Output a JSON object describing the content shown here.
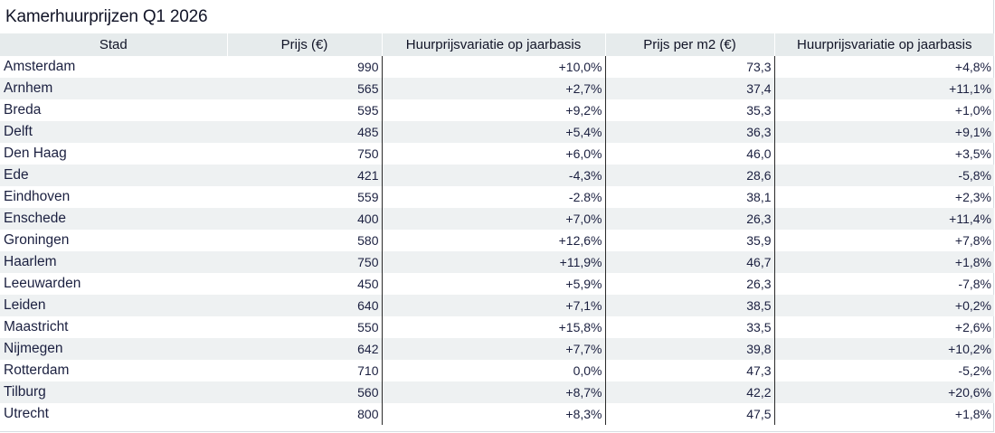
{
  "title": "Kamerhuurprijzen Q1 2026",
  "chart_data": {
    "type": "table",
    "title": "Kamerhuurprijzen Q1 2026",
    "columns": [
      "Stad",
      "Prijs (€)",
      "Huurprijsvariatie op jaarbasis",
      "Prijs per m2 (€)",
      "Huurprijsvariatie op jaarbasis"
    ],
    "rows": [
      {
        "stad": "Amsterdam",
        "prijs": "990",
        "var1": "+10,0%",
        "m2": "73,3",
        "var2": "+4,8%"
      },
      {
        "stad": "Arnhem",
        "prijs": "565",
        "var1": "+2,7%",
        "m2": "37,4",
        "var2": "+11,1%"
      },
      {
        "stad": "Breda",
        "prijs": "595",
        "var1": "+9,2%",
        "m2": "35,3",
        "var2": "+1,0%"
      },
      {
        "stad": "Delft",
        "prijs": "485",
        "var1": "+5,4%",
        "m2": "36,3",
        "var2": "+9,1%"
      },
      {
        "stad": "Den Haag",
        "prijs": "750",
        "var1": "+6,0%",
        "m2": "46,0",
        "var2": "+3,5%"
      },
      {
        "stad": "Ede",
        "prijs": "421",
        "var1": "-4,3%",
        "m2": "28,6",
        "var2": "-5,8%"
      },
      {
        "stad": "Eindhoven",
        "prijs": "559",
        "var1": "-2.8%",
        "m2": "38,1",
        "var2": "+2,3%"
      },
      {
        "stad": "Enschede",
        "prijs": "400",
        "var1": "+7,0%",
        "m2": "26,3",
        "var2": "+11,4%"
      },
      {
        "stad": "Groningen",
        "prijs": "580",
        "var1": "+12,6%",
        "m2": "35,9",
        "var2": "+7,8%"
      },
      {
        "stad": "Haarlem",
        "prijs": "750",
        "var1": "+11,9%",
        "m2": "46,7",
        "var2": "+1,8%"
      },
      {
        "stad": "Leeuwarden",
        "prijs": "450",
        "var1": "+5,9%",
        "m2": "26,3",
        "var2": "-7,8%"
      },
      {
        "stad": "Leiden",
        "prijs": "640",
        "var1": "+7,1%",
        "m2": "38,5",
        "var2": "+0,2%"
      },
      {
        "stad": "Maastricht",
        "prijs": "550",
        "var1": "+15,8%",
        "m2": "33,5",
        "var2": "+2,6%"
      },
      {
        "stad": "Nijmegen",
        "prijs": "642",
        "var1": "+7,7%",
        "m2": "39,8",
        "var2": "+10,2%"
      },
      {
        "stad": "Rotterdam",
        "prijs": "710",
        "var1": "0,0%",
        "m2": "47,3",
        "var2": "-5,2%"
      },
      {
        "stad": "Tilburg",
        "prijs": "560",
        "var1": "+8,7%",
        "m2": "42,2",
        "var2": "+20,6%"
      },
      {
        "stad": "Utrecht",
        "prijs": "800",
        "var1": "+8,3%",
        "m2": "47,5",
        "var2": "+1,8%"
      }
    ]
  },
  "colors": {
    "header_bg": "#e6ebec",
    "stripe_bg": "#eef1f2",
    "text": "#1b2040",
    "separator": "#2a2a2a"
  }
}
